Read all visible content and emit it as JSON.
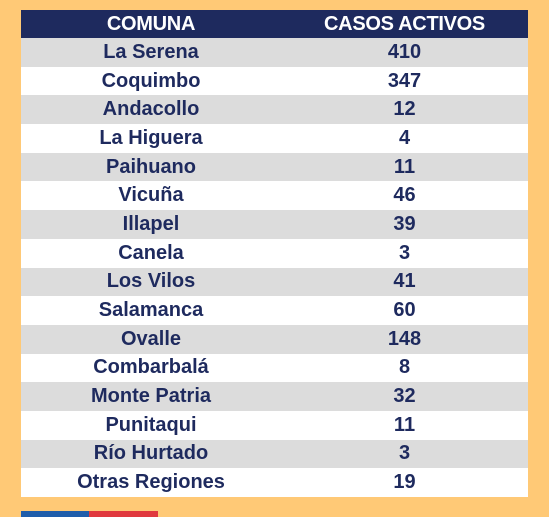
{
  "chart_data": {
    "type": "table",
    "columns": [
      "COMUNA",
      "CASOS ACTIVOS"
    ],
    "rows": [
      {
        "comuna": "La Serena",
        "casos": "410"
      },
      {
        "comuna": "Coquimbo",
        "casos": "347"
      },
      {
        "comuna": "Andacollo",
        "casos": "12"
      },
      {
        "comuna": "La Higuera",
        "casos": "4"
      },
      {
        "comuna": "Paihuano",
        "casos": "11"
      },
      {
        "comuna": "Vicuña",
        "casos": "46"
      },
      {
        "comuna": "Illapel",
        "casos": "39"
      },
      {
        "comuna": "Canela",
        "casos": "3"
      },
      {
        "comuna": "Los Vilos",
        "casos": "41"
      },
      {
        "comuna": "Salamanca",
        "casos": "60"
      },
      {
        "comuna": "Ovalle",
        "casos": "148"
      },
      {
        "comuna": "Combarbalá",
        "casos": "8"
      },
      {
        "comuna": "Monte Patria",
        "casos": "32"
      },
      {
        "comuna": "Punitaqui",
        "casos": "11"
      },
      {
        "comuna": "Río Hurtado",
        "casos": "3"
      },
      {
        "comuna": "Otras Regiones",
        "casos": "19"
      }
    ]
  },
  "colors": {
    "background": "#FFC976",
    "header_bg": "#1E2A5E",
    "text": "#1E2A5E",
    "row_odd": "#DCDCDC",
    "row_even": "#FFFFFF",
    "footer_blue": "#1F5DAA",
    "footer_red": "#E0393E"
  }
}
